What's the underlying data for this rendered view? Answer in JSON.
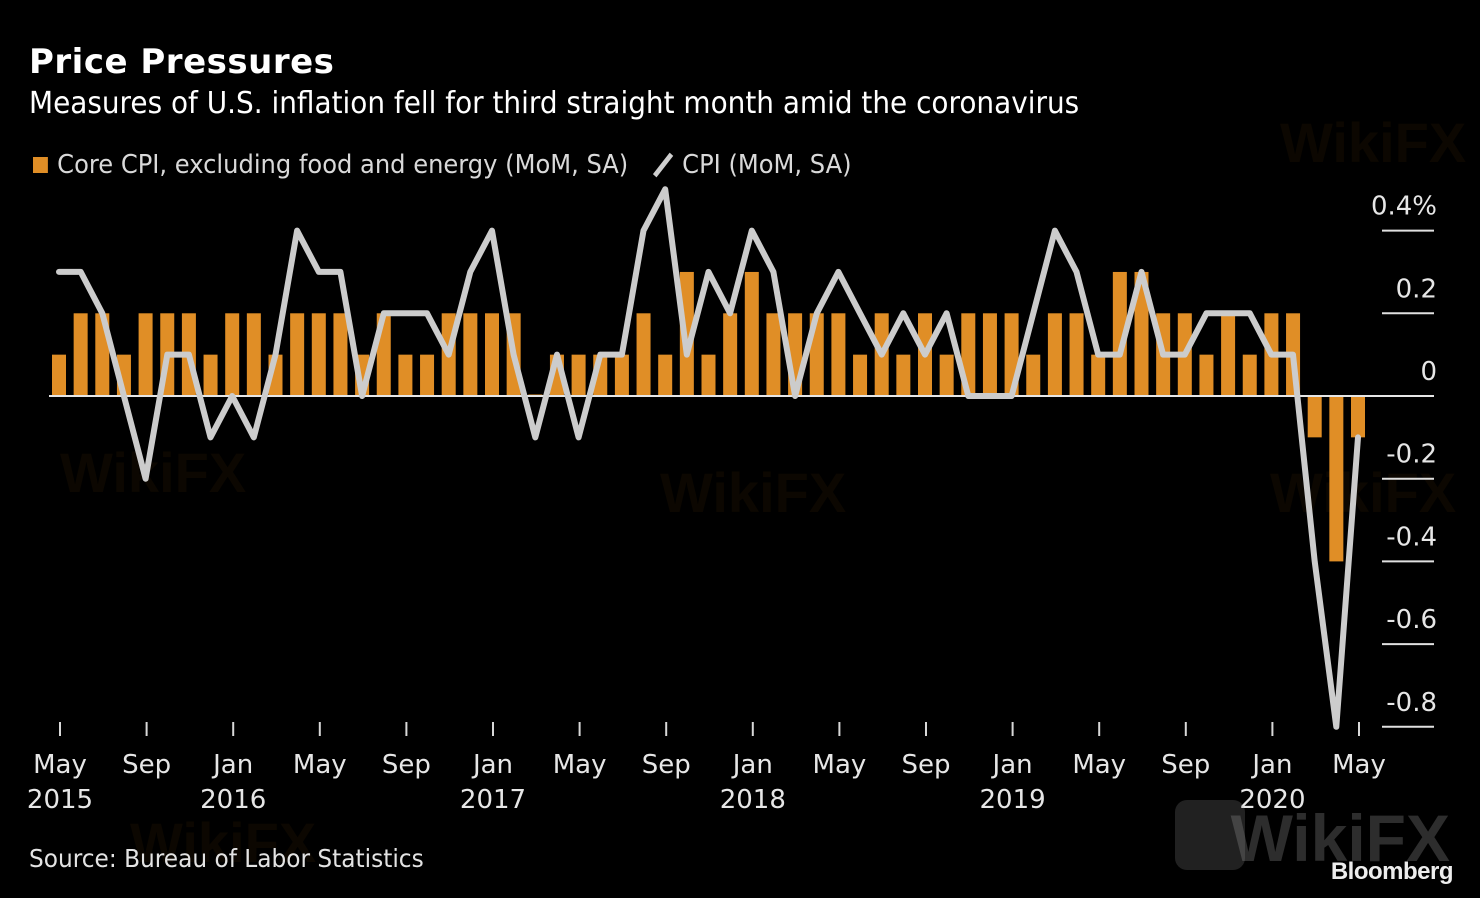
{
  "chart_data": {
    "type": "bar+line",
    "title": "Price Pressures",
    "subtitle": "Measures of U.S. inflation fell for third straight month amid the coronavirus",
    "xlabel": "",
    "ylabel": "",
    "ylim": [
      -0.85,
      0.45
    ],
    "y_ticks": [
      0.4,
      0.2,
      0,
      -0.2,
      -0.4,
      -0.6,
      -0.8
    ],
    "y_tick_labels": [
      "0.4%",
      "0.2",
      "0",
      "-0.2",
      "-0.4",
      "-0.6",
      "-0.8"
    ],
    "x_tick_labels": [
      {
        "month": "May",
        "year": "2015"
      },
      {
        "month": "Sep",
        "year": ""
      },
      {
        "month": "Jan",
        "year": "2016"
      },
      {
        "month": "May",
        "year": ""
      },
      {
        "month": "Sep",
        "year": ""
      },
      {
        "month": "Jan",
        "year": "2017"
      },
      {
        "month": "May",
        "year": ""
      },
      {
        "month": "Sep",
        "year": ""
      },
      {
        "month": "Jan",
        "year": "2018"
      },
      {
        "month": "May",
        "year": ""
      },
      {
        "month": "Sep",
        "year": ""
      },
      {
        "month": "Jan",
        "year": "2019"
      },
      {
        "month": "May",
        "year": ""
      },
      {
        "month": "Sep",
        "year": ""
      },
      {
        "month": "Jan",
        "year": "2020"
      },
      {
        "month": "May",
        "year": ""
      }
    ],
    "x": [
      "2015-05",
      "2015-06",
      "2015-07",
      "2015-08",
      "2015-09",
      "2015-10",
      "2015-11",
      "2015-12",
      "2016-01",
      "2016-02",
      "2016-03",
      "2016-04",
      "2016-05",
      "2016-06",
      "2016-07",
      "2016-08",
      "2016-09",
      "2016-10",
      "2016-11",
      "2016-12",
      "2017-01",
      "2017-02",
      "2017-03",
      "2017-04",
      "2017-05",
      "2017-06",
      "2017-07",
      "2017-08",
      "2017-09",
      "2017-10",
      "2017-11",
      "2017-12",
      "2018-01",
      "2018-02",
      "2018-03",
      "2018-04",
      "2018-05",
      "2018-06",
      "2018-07",
      "2018-08",
      "2018-09",
      "2018-10",
      "2018-11",
      "2018-12",
      "2019-01",
      "2019-02",
      "2019-03",
      "2019-04",
      "2019-05",
      "2019-06",
      "2019-07",
      "2019-08",
      "2019-09",
      "2019-10",
      "2019-11",
      "2019-12",
      "2020-01",
      "2020-02",
      "2020-03",
      "2020-04",
      "2020-05"
    ],
    "series": [
      {
        "name": "Core CPI, excluding food and energy (MoM, SA)",
        "type": "bar",
        "color": "#e08e26",
        "values": [
          0.1,
          0.2,
          0.2,
          0.1,
          0.2,
          0.2,
          0.2,
          0.1,
          0.2,
          0.2,
          0.1,
          0.2,
          0.2,
          0.2,
          0.1,
          0.2,
          0.1,
          0.1,
          0.2,
          0.2,
          0.2,
          0.2,
          0.0,
          0.1,
          0.1,
          0.1,
          0.1,
          0.2,
          0.1,
          0.3,
          0.1,
          0.2,
          0.3,
          0.2,
          0.2,
          0.2,
          0.2,
          0.1,
          0.2,
          0.1,
          0.2,
          0.1,
          0.2,
          0.2,
          0.2,
          0.1,
          0.2,
          0.2,
          0.1,
          0.3,
          0.3,
          0.2,
          0.2,
          0.1,
          0.2,
          0.1,
          0.2,
          0.2,
          -0.1,
          -0.4,
          -0.1
        ]
      },
      {
        "name": "CPI (MoM, SA)",
        "type": "line",
        "color": "#cccccc",
        "values": [
          0.3,
          0.3,
          0.2,
          0.0,
          -0.2,
          0.1,
          0.1,
          -0.1,
          0.0,
          -0.1,
          0.1,
          0.4,
          0.3,
          0.3,
          0.0,
          0.2,
          0.2,
          0.2,
          0.1,
          0.3,
          0.4,
          0.1,
          -0.1,
          0.1,
          -0.1,
          0.1,
          0.1,
          0.4,
          0.5,
          0.1,
          0.3,
          0.2,
          0.4,
          0.3,
          0.0,
          0.2,
          0.3,
          0.2,
          0.1,
          0.2,
          0.1,
          0.2,
          0.0,
          0.0,
          0.0,
          0.2,
          0.4,
          0.3,
          0.1,
          0.1,
          0.3,
          0.1,
          0.1,
          0.2,
          0.2,
          0.2,
          0.1,
          0.1,
          -0.4,
          -0.8,
          -0.1
        ]
      }
    ],
    "legend": "top-left",
    "grid": false
  },
  "header": {
    "title": "Price Pressures",
    "subtitle": "Measures of U.S. inflation fell for third straight month amid the coronavirus"
  },
  "legend": {
    "core_label": "Core CPI, excluding food and energy (MoM, SA)",
    "cpi_label": "CPI (MoM, SA)"
  },
  "footer": {
    "source": "Source: Bureau of Labor Statistics",
    "brand": "Bloomberg"
  },
  "watermark": {
    "text": "WikiFX"
  }
}
